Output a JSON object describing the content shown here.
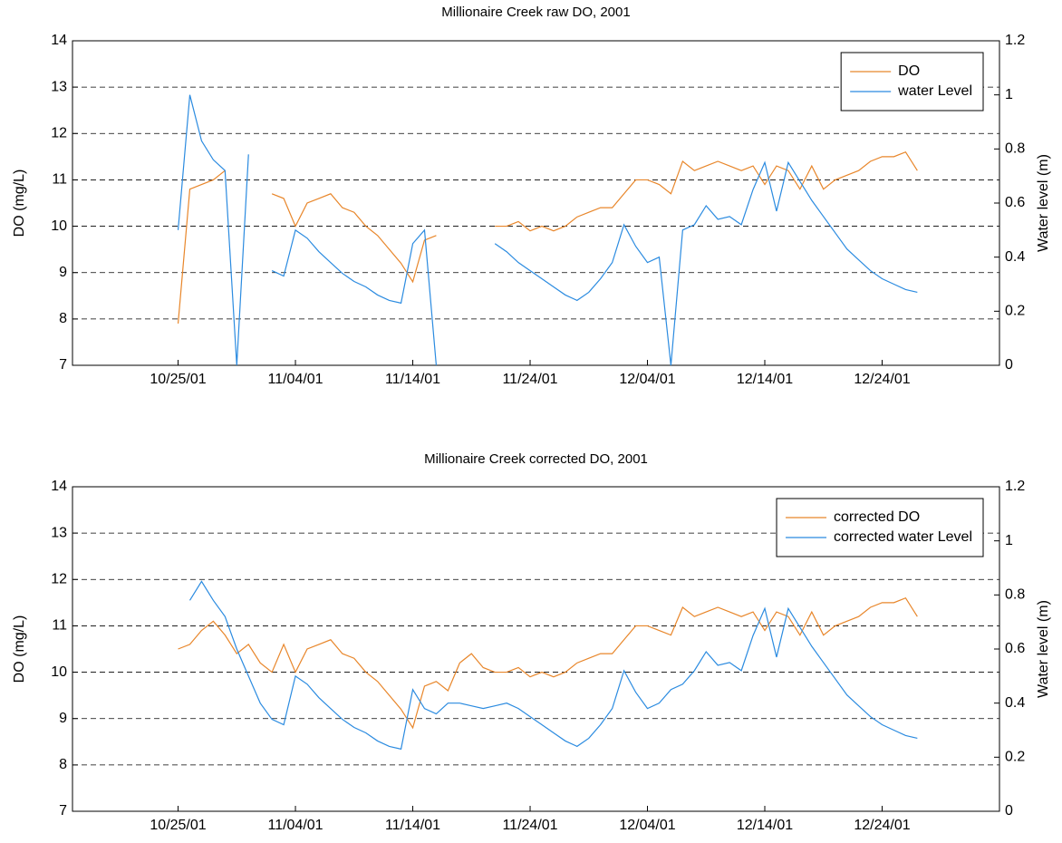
{
  "chart_data": [
    {
      "type": "line",
      "title": "Millionaire Creek raw DO, 2001",
      "ylabel": "DO (mg/L)",
      "y2label": "Water level (m)",
      "x": [
        "2001-10-25",
        "2001-10-26",
        "2001-10-27",
        "2001-10-28",
        "2001-10-29",
        "2001-10-30",
        "2001-10-31",
        "2001-11-01",
        "2001-11-02",
        "2001-11-03",
        "2001-11-04",
        "2001-11-05",
        "2001-11-06",
        "2001-11-07",
        "2001-11-08",
        "2001-11-09",
        "2001-11-10",
        "2001-11-11",
        "2001-11-12",
        "2001-11-13",
        "2001-11-14",
        "2001-11-15",
        "2001-11-16",
        "2001-11-17",
        "2001-11-18",
        "2001-11-19",
        "2001-11-20",
        "2001-11-21",
        "2001-11-22",
        "2001-11-23",
        "2001-11-24",
        "2001-11-25",
        "2001-11-26",
        "2001-11-27",
        "2001-11-28",
        "2001-11-29",
        "2001-11-30",
        "2001-12-01",
        "2001-12-02",
        "2001-12-03",
        "2001-12-04",
        "2001-12-05",
        "2001-12-06",
        "2001-12-07",
        "2001-12-08",
        "2001-12-09",
        "2001-12-10",
        "2001-12-11",
        "2001-12-12",
        "2001-12-13",
        "2001-12-14",
        "2001-12-15",
        "2001-12-16",
        "2001-12-17",
        "2001-12-18",
        "2001-12-19",
        "2001-12-20",
        "2001-12-21",
        "2001-12-22",
        "2001-12-23",
        "2001-12-24",
        "2001-12-25",
        "2001-12-26",
        "2001-12-27"
      ],
      "series": [
        {
          "name": "DO",
          "color": "#e8862a",
          "values": [
            7.9,
            10.8,
            10.9,
            11.0,
            11.2,
            null,
            null,
            null,
            10.7,
            10.6,
            10.0,
            10.5,
            10.6,
            10.7,
            10.4,
            10.3,
            10.0,
            9.8,
            9.5,
            9.2,
            8.8,
            9.7,
            9.8,
            null,
            null,
            null,
            null,
            10.0,
            10.0,
            10.1,
            9.9,
            10.0,
            9.9,
            10.0,
            10.2,
            10.3,
            10.4,
            10.4,
            10.7,
            11.0,
            11.0,
            10.9,
            10.7,
            11.4,
            11.2,
            11.3,
            11.4,
            11.3,
            11.2,
            11.3,
            10.9,
            11.3,
            11.2,
            10.8,
            11.3,
            10.8,
            11.0,
            11.1,
            11.2,
            11.4,
            11.5,
            11.5,
            11.6,
            11.2
          ]
        },
        {
          "name": "water Level",
          "color": "#2b8be0",
          "axis": "y2",
          "values": [
            0.5,
            1.0,
            0.83,
            0.76,
            0.72,
            0.0,
            0.78,
            null,
            0.35,
            0.33,
            0.5,
            0.47,
            0.42,
            0.38,
            0.34,
            0.31,
            0.29,
            0.26,
            0.24,
            0.23,
            0.45,
            0.5,
            0.0,
            null,
            null,
            null,
            null,
            0.45,
            0.42,
            0.38,
            0.35,
            0.32,
            0.29,
            0.26,
            0.24,
            0.27,
            0.32,
            0.38,
            0.52,
            0.44,
            0.38,
            0.4,
            0.0,
            0.5,
            0.52,
            0.59,
            0.54,
            0.55,
            0.52,
            0.65,
            0.75,
            0.57,
            0.75,
            0.68,
            0.61,
            0.55,
            0.49,
            0.43,
            0.39,
            0.35,
            0.32,
            0.3,
            0.28,
            0.27
          ]
        }
      ],
      "xlim": [
        "2001-10-16",
        "2002-01-03"
      ],
      "xticks": [
        {
          "value": "2001-10-25",
          "label": "10/25/01"
        },
        {
          "value": "2001-11-04",
          "label": "11/04/01"
        },
        {
          "value": "2001-11-14",
          "label": "11/14/01"
        },
        {
          "value": "2001-11-24",
          "label": "11/24/01"
        },
        {
          "value": "2001-12-04",
          "label": "12/04/01"
        },
        {
          "value": "2001-12-14",
          "label": "12/14/01"
        },
        {
          "value": "2001-12-24",
          "label": "12/24/01"
        }
      ],
      "ylim": [
        7,
        14
      ],
      "yticks": [
        7,
        8,
        9,
        10,
        11,
        12,
        13,
        14
      ],
      "y2lim": [
        0,
        1.2
      ],
      "y2ticks": [
        0,
        0.2,
        0.4,
        0.6,
        0.8,
        1,
        1.2
      ],
      "grid": true,
      "legend": "upper right"
    },
    {
      "type": "line",
      "title": "Millionaire Creek corrected DO, 2001",
      "ylabel": "DO (mg/L)",
      "y2label": "Water level (m)",
      "x": [
        "2001-10-25",
        "2001-10-26",
        "2001-10-27",
        "2001-10-28",
        "2001-10-29",
        "2001-10-30",
        "2001-10-31",
        "2001-11-01",
        "2001-11-02",
        "2001-11-03",
        "2001-11-04",
        "2001-11-05",
        "2001-11-06",
        "2001-11-07",
        "2001-11-08",
        "2001-11-09",
        "2001-11-10",
        "2001-11-11",
        "2001-11-12",
        "2001-11-13",
        "2001-11-14",
        "2001-11-15",
        "2001-11-16",
        "2001-11-17",
        "2001-11-18",
        "2001-11-19",
        "2001-11-20",
        "2001-11-21",
        "2001-11-22",
        "2001-11-23",
        "2001-11-24",
        "2001-11-25",
        "2001-11-26",
        "2001-11-27",
        "2001-11-28",
        "2001-11-29",
        "2001-11-30",
        "2001-12-01",
        "2001-12-02",
        "2001-12-03",
        "2001-12-04",
        "2001-12-05",
        "2001-12-06",
        "2001-12-07",
        "2001-12-08",
        "2001-12-09",
        "2001-12-10",
        "2001-12-11",
        "2001-12-12",
        "2001-12-13",
        "2001-12-14",
        "2001-12-15",
        "2001-12-16",
        "2001-12-17",
        "2001-12-18",
        "2001-12-19",
        "2001-12-20",
        "2001-12-21",
        "2001-12-22",
        "2001-12-23",
        "2001-12-24",
        "2001-12-25",
        "2001-12-26",
        "2001-12-27"
      ],
      "series": [
        {
          "name": "corrected DO",
          "color": "#e8862a",
          "values": [
            10.5,
            10.6,
            10.9,
            11.1,
            10.8,
            10.4,
            10.6,
            10.2,
            10.0,
            10.6,
            10.0,
            10.5,
            10.6,
            10.7,
            10.4,
            10.3,
            10.0,
            9.8,
            9.5,
            9.2,
            8.8,
            9.7,
            9.8,
            9.6,
            10.2,
            10.4,
            10.1,
            10.0,
            10.0,
            10.1,
            9.9,
            10.0,
            9.9,
            10.0,
            10.2,
            10.3,
            10.4,
            10.4,
            10.7,
            11.0,
            11.0,
            10.9,
            10.8,
            11.4,
            11.2,
            11.3,
            11.4,
            11.3,
            11.2,
            11.3,
            10.9,
            11.3,
            11.2,
            10.8,
            11.3,
            10.8,
            11.0,
            11.1,
            11.2,
            11.4,
            11.5,
            11.5,
            11.6,
            11.2
          ]
        },
        {
          "name": "corrected water Level",
          "color": "#2b8be0",
          "axis": "y2",
          "values": [
            null,
            0.78,
            0.85,
            0.78,
            0.72,
            0.6,
            0.5,
            0.4,
            0.34,
            0.32,
            0.5,
            0.47,
            0.42,
            0.38,
            0.34,
            0.31,
            0.29,
            0.26,
            0.24,
            0.23,
            0.45,
            0.38,
            0.36,
            0.4,
            0.4,
            0.39,
            0.38,
            0.39,
            0.4,
            0.38,
            0.35,
            0.32,
            0.29,
            0.26,
            0.24,
            0.27,
            0.32,
            0.38,
            0.52,
            0.44,
            0.38,
            0.4,
            0.45,
            0.47,
            0.52,
            0.59,
            0.54,
            0.55,
            0.52,
            0.65,
            0.75,
            0.57,
            0.75,
            0.68,
            0.61,
            0.55,
            0.49,
            0.43,
            0.39,
            0.35,
            0.32,
            0.3,
            0.28,
            0.27
          ]
        }
      ],
      "xlim": [
        "2001-10-16",
        "2002-01-03"
      ],
      "xticks": [
        {
          "value": "2001-10-25",
          "label": "10/25/01"
        },
        {
          "value": "2001-11-04",
          "label": "11/04/01"
        },
        {
          "value": "2001-11-14",
          "label": "11/14/01"
        },
        {
          "value": "2001-11-24",
          "label": "11/24/01"
        },
        {
          "value": "2001-12-04",
          "label": "12/04/01"
        },
        {
          "value": "2001-12-14",
          "label": "12/14/01"
        },
        {
          "value": "2001-12-24",
          "label": "12/24/01"
        }
      ],
      "ylim": [
        7,
        14
      ],
      "yticks": [
        7,
        8,
        9,
        10,
        11,
        12,
        13,
        14
      ],
      "y2lim": [
        0,
        1.2
      ],
      "y2ticks": [
        0,
        0.2,
        0.4,
        0.6,
        0.8,
        1,
        1.2
      ],
      "grid": true,
      "legend": "upper right"
    }
  ]
}
